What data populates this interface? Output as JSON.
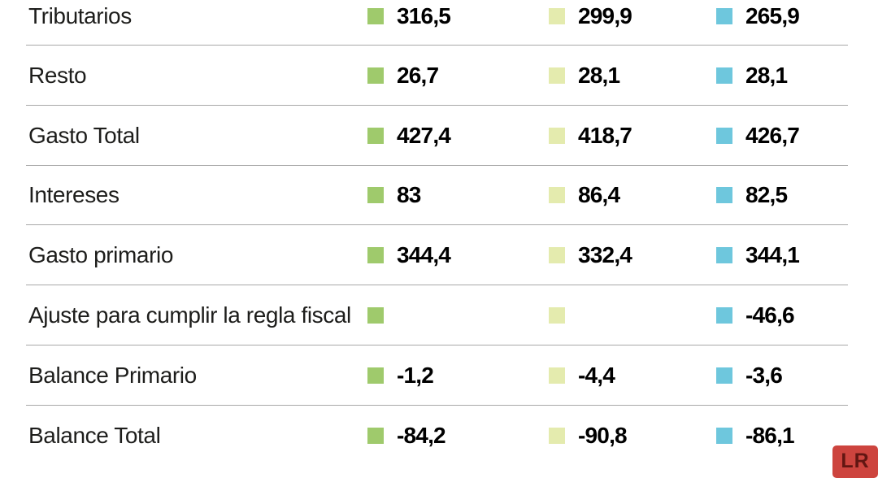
{
  "chart_data": {
    "type": "table",
    "columns": [
      {
        "name": "series-green",
        "color": "#9fca6c"
      },
      {
        "name": "series-pale-green",
        "color": "#e4ebae"
      },
      {
        "name": "series-blue",
        "color": "#6ec7dd"
      }
    ],
    "rows": [
      {
        "label": "Tributarios",
        "values": [
          "316,5",
          "299,9",
          "265,9"
        ]
      },
      {
        "label": "Resto",
        "values": [
          "26,7",
          "28,1",
          "28,1"
        ]
      },
      {
        "label": "Gasto Total",
        "values": [
          "427,4",
          "418,7",
          "426,7"
        ]
      },
      {
        "label": "Intereses",
        "values": [
          "83",
          "86,4",
          "82,5"
        ]
      },
      {
        "label": "Gasto primario",
        "values": [
          "344,4",
          "332,4",
          "344,1"
        ]
      },
      {
        "label": "Ajuste para cumplir la regla fiscal",
        "values": [
          "",
          "",
          "-46,6"
        ]
      },
      {
        "label": "Balance Primario",
        "values": [
          "-1,2",
          "-4,4",
          "-3,6"
        ]
      },
      {
        "label": "Balance Total",
        "values": [
          "-84,2",
          "-90,8",
          "-86,1"
        ]
      }
    ],
    "layout": {
      "grid": "horizontal-row-separators",
      "legend_position": "inline-swatches"
    }
  },
  "style": {
    "separator_color": "#a8a8a8",
    "label_color": "#1d1d1b",
    "value_color": "#000000"
  },
  "logo": {
    "text": "LR",
    "background": "#cd443e",
    "foreground": "#621612"
  }
}
